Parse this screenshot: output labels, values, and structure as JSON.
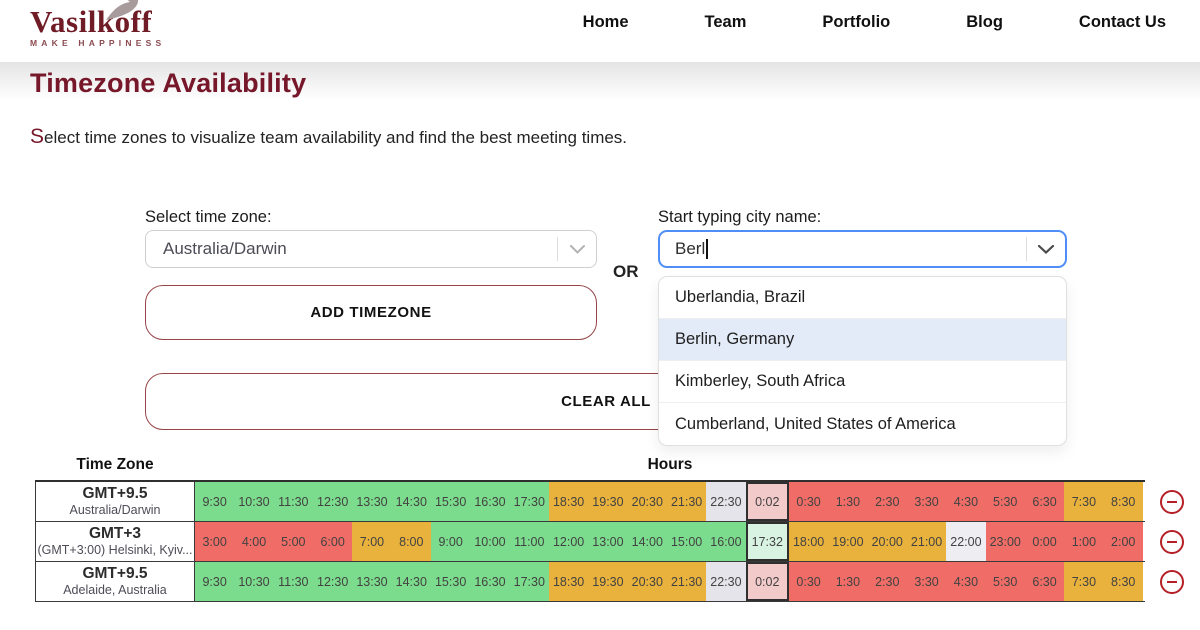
{
  "brand": {
    "name": "Vasilkoff",
    "tagline": "MAKE HAPPINESS"
  },
  "nav": {
    "items": [
      "Home",
      "Team",
      "Portfolio",
      "Blog",
      "Contact Us"
    ]
  },
  "page": {
    "title": "Timezone Availability",
    "subtitle_first_letter": "S",
    "subtitle_rest": "elect time zones to visualize team availability and find the best meeting times."
  },
  "form": {
    "select_label": "Select time zone:",
    "select_value": "Australia/Darwin",
    "or_text": "OR",
    "add_button": "ADD TIMEZONE",
    "clear_button": "CLEAR ALL",
    "city_label": "Start typing city name:",
    "city_value": "Berl",
    "suggestions": [
      {
        "label": "Uberlandia, Brazil",
        "highlighted": false
      },
      {
        "label": "Berlin, Germany",
        "highlighted": true
      },
      {
        "label": "Kimberley, South Africa",
        "highlighted": false
      },
      {
        "label": "Cumberland, United States of America",
        "highlighted": false
      }
    ]
  },
  "colors": {
    "accent_maroon": "#76172a",
    "button_border": "#964447",
    "minus_red": "#b42025",
    "cell_green": "#7cdc8d",
    "cell_orange": "#e9b23c",
    "cell_red": "#ef6d66",
    "cell_gray": "#e4e4ea",
    "cell_now_red": "#f3caca",
    "cell_now_green": "#d9f3e2",
    "suggestion_highlight": "#e4ebf8",
    "input_focus_border": "#4f8df7"
  },
  "table": {
    "col1_header": "Time Zone",
    "col2_header": "Hours",
    "rows": [
      {
        "gmt": "GMT+9.5",
        "name": "Australia/Darwin",
        "cells": [
          {
            "t": "9:30",
            "c": "g"
          },
          {
            "t": "10:30",
            "c": "g"
          },
          {
            "t": "11:30",
            "c": "g"
          },
          {
            "t": "12:30",
            "c": "g"
          },
          {
            "t": "13:30",
            "c": "g"
          },
          {
            "t": "14:30",
            "c": "g"
          },
          {
            "t": "15:30",
            "c": "g"
          },
          {
            "t": "16:30",
            "c": "g"
          },
          {
            "t": "17:30",
            "c": "g"
          },
          {
            "t": "18:30",
            "c": "o"
          },
          {
            "t": "19:30",
            "c": "o"
          },
          {
            "t": "20:30",
            "c": "o"
          },
          {
            "t": "21:30",
            "c": "o"
          },
          {
            "t": "22:30",
            "c": "gray"
          },
          {
            "t": "0:02",
            "c": "now-red"
          },
          {
            "t": "0:30",
            "c": "r"
          },
          {
            "t": "1:30",
            "c": "r"
          },
          {
            "t": "2:30",
            "c": "r"
          },
          {
            "t": "3:30",
            "c": "r"
          },
          {
            "t": "4:30",
            "c": "r"
          },
          {
            "t": "5:30",
            "c": "r"
          },
          {
            "t": "6:30",
            "c": "r"
          },
          {
            "t": "7:30",
            "c": "o"
          },
          {
            "t": "8:30",
            "c": "o"
          }
        ]
      },
      {
        "gmt": "GMT+3",
        "name": "(GMT+3:00) Helsinki, Kyiv...",
        "cells": [
          {
            "t": "3:00",
            "c": "r"
          },
          {
            "t": "4:00",
            "c": "r"
          },
          {
            "t": "5:00",
            "c": "r"
          },
          {
            "t": "6:00",
            "c": "r"
          },
          {
            "t": "7:00",
            "c": "o"
          },
          {
            "t": "8:00",
            "c": "o"
          },
          {
            "t": "9:00",
            "c": "g"
          },
          {
            "t": "10:00",
            "c": "g"
          },
          {
            "t": "11:00",
            "c": "g"
          },
          {
            "t": "12:00",
            "c": "g"
          },
          {
            "t": "13:00",
            "c": "g"
          },
          {
            "t": "14:00",
            "c": "g"
          },
          {
            "t": "15:00",
            "c": "g"
          },
          {
            "t": "16:00",
            "c": "g"
          },
          {
            "t": "17:32",
            "c": "now-green"
          },
          {
            "t": "18:00",
            "c": "o"
          },
          {
            "t": "19:00",
            "c": "o"
          },
          {
            "t": "20:00",
            "c": "o"
          },
          {
            "t": "21:00",
            "c": "o"
          },
          {
            "t": "22:00",
            "c": "gray2"
          },
          {
            "t": "23:00",
            "c": "r"
          },
          {
            "t": "0:00",
            "c": "r"
          },
          {
            "t": "1:00",
            "c": "r"
          },
          {
            "t": "2:00",
            "c": "r"
          }
        ]
      },
      {
        "gmt": "GMT+9.5",
        "name": "Adelaide, Australia",
        "cells": [
          {
            "t": "9:30",
            "c": "g"
          },
          {
            "t": "10:30",
            "c": "g"
          },
          {
            "t": "11:30",
            "c": "g"
          },
          {
            "t": "12:30",
            "c": "g"
          },
          {
            "t": "13:30",
            "c": "g"
          },
          {
            "t": "14:30",
            "c": "g"
          },
          {
            "t": "15:30",
            "c": "g"
          },
          {
            "t": "16:30",
            "c": "g"
          },
          {
            "t": "17:30",
            "c": "g"
          },
          {
            "t": "18:30",
            "c": "o"
          },
          {
            "t": "19:30",
            "c": "o"
          },
          {
            "t": "20:30",
            "c": "o"
          },
          {
            "t": "21:30",
            "c": "o"
          },
          {
            "t": "22:30",
            "c": "gray"
          },
          {
            "t": "0:02",
            "c": "now-red"
          },
          {
            "t": "0:30",
            "c": "r"
          },
          {
            "t": "1:30",
            "c": "r"
          },
          {
            "t": "2:30",
            "c": "r"
          },
          {
            "t": "3:30",
            "c": "r"
          },
          {
            "t": "4:30",
            "c": "r"
          },
          {
            "t": "5:30",
            "c": "r"
          },
          {
            "t": "6:30",
            "c": "r"
          },
          {
            "t": "7:30",
            "c": "o"
          },
          {
            "t": "8:30",
            "c": "o"
          }
        ]
      }
    ]
  }
}
